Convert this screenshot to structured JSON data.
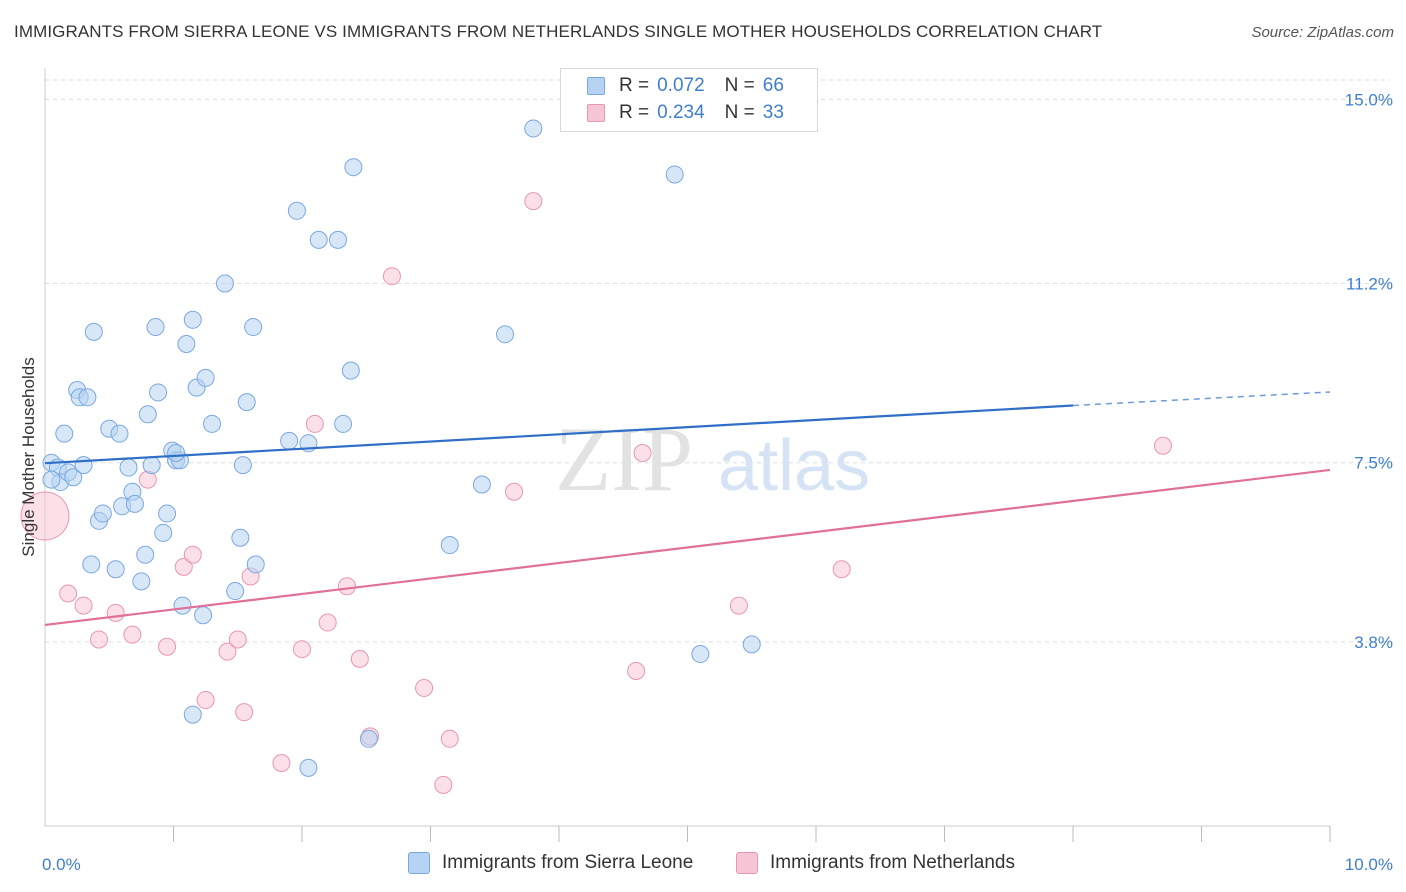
{
  "title": "IMMIGRANTS FROM SIERRA LEONE VS IMMIGRANTS FROM NETHERLANDS SINGLE MOTHER HOUSEHOLDS CORRELATION CHART",
  "source": "Source: ZipAtlas.com",
  "watermark": {
    "zip": "ZIP",
    "atlas": "atlas"
  },
  "legend": {
    "series1": {
      "r_label": "R = ",
      "r_value": "0.072",
      "n_label": "N = ",
      "n_value": "66"
    },
    "series2": {
      "r_label": "R = ",
      "r_value": "0.234",
      "n_label": "N = ",
      "n_value": "33"
    }
  },
  "colors": {
    "blue_fill": "#b7d3f3",
    "blue_stroke": "#7aa8e0",
    "blue_line": "#2f6fc7",
    "pink_fill": "#f7c6d6",
    "pink_stroke": "#e896b2",
    "pink_line": "#e0709a",
    "tick_text": "#3f7fd0",
    "grid": "#dddddd"
  },
  "chart_data": {
    "type": "scatter",
    "title": "IMMIGRANTS FROM SIERRA LEONE VS IMMIGRANTS FROM NETHERLANDS SINGLE MOTHER HOUSEHOLDS CORRELATION CHART",
    "xlabel": "",
    "ylabel": "Single Mother Households",
    "xlim": [
      0,
      10
    ],
    "ylim": [
      0,
      15.4
    ],
    "x_tick_labels": [
      "0.0%",
      "10.0%"
    ],
    "y_ticks": [
      3.8,
      7.5,
      11.2,
      15.0
    ],
    "y_tick_labels": [
      "3.8%",
      "7.5%",
      "11.2%",
      "15.0%"
    ],
    "grid": "horizontal dashed",
    "legend_position": "top-center",
    "series": [
      {
        "name": "Immigrants from Sierra Leone",
        "color": "#b7d3f3",
        "r": 0.072,
        "n": 66,
        "trend": {
          "x": [
            0,
            8.0
          ],
          "y": [
            7.49,
            8.68
          ],
          "dashed_to": [
            10,
            8.96
          ]
        },
        "points": [
          [
            0.05,
            7.5
          ],
          [
            0.1,
            7.4
          ],
          [
            0.12,
            7.1
          ],
          [
            0.15,
            8.1
          ],
          [
            0.18,
            7.3
          ],
          [
            0.22,
            7.2
          ],
          [
            0.25,
            9.0
          ],
          [
            0.27,
            8.85
          ],
          [
            0.3,
            7.45
          ],
          [
            0.33,
            8.85
          ],
          [
            0.36,
            5.4
          ],
          [
            0.38,
            10.2
          ],
          [
            0.42,
            6.3
          ],
          [
            0.45,
            6.45
          ],
          [
            0.5,
            8.2
          ],
          [
            0.55,
            5.3
          ],
          [
            0.58,
            8.1
          ],
          [
            0.6,
            6.6
          ],
          [
            0.65,
            7.4
          ],
          [
            0.68,
            6.9
          ],
          [
            0.7,
            6.65
          ],
          [
            0.75,
            5.05
          ],
          [
            0.78,
            5.6
          ],
          [
            0.8,
            8.5
          ],
          [
            0.83,
            7.45
          ],
          [
            0.86,
            10.3
          ],
          [
            0.88,
            8.95
          ],
          [
            0.92,
            6.05
          ],
          [
            0.95,
            6.45
          ],
          [
            0.99,
            7.75
          ],
          [
            1.02,
            7.55
          ],
          [
            1.05,
            7.55
          ],
          [
            1.07,
            4.55
          ],
          [
            1.1,
            9.95
          ],
          [
            1.15,
            10.45
          ],
          [
            1.18,
            9.05
          ],
          [
            1.23,
            4.35
          ],
          [
            1.25,
            9.25
          ],
          [
            1.3,
            8.3
          ],
          [
            1.4,
            11.2
          ],
          [
            1.48,
            4.85
          ],
          [
            1.52,
            5.95
          ],
          [
            1.54,
            7.45
          ],
          [
            1.57,
            8.75
          ],
          [
            1.62,
            10.3
          ],
          [
            1.64,
            5.4
          ],
          [
            1.9,
            7.95
          ],
          [
            1.96,
            12.7
          ],
          [
            2.05,
            1.2
          ],
          [
            2.05,
            7.9
          ],
          [
            2.13,
            12.1
          ],
          [
            2.28,
            12.1
          ],
          [
            2.32,
            8.3
          ],
          [
            2.38,
            9.4
          ],
          [
            2.4,
            13.6
          ],
          [
            2.52,
            1.8
          ],
          [
            3.15,
            5.8
          ],
          [
            3.4,
            7.05
          ],
          [
            3.58,
            10.15
          ],
          [
            3.8,
            14.4
          ],
          [
            4.9,
            13.45
          ],
          [
            5.1,
            3.55
          ],
          [
            5.5,
            3.75
          ],
          [
            0.05,
            7.15
          ],
          [
            1.15,
            2.3
          ],
          [
            1.02,
            7.7
          ]
        ]
      },
      {
        "name": "Immigrants from Netherlands",
        "color": "#f7c6d6",
        "r": 0.234,
        "n": 33,
        "trend": {
          "x": [
            0,
            10
          ],
          "y": [
            4.15,
            7.35
          ]
        },
        "points": [
          [
            0.0,
            6.4
          ],
          [
            0.18,
            4.8
          ],
          [
            0.3,
            4.55
          ],
          [
            0.42,
            3.85
          ],
          [
            0.55,
            4.4
          ],
          [
            0.68,
            3.95
          ],
          [
            0.8,
            7.15
          ],
          [
            0.95,
            3.7
          ],
          [
            1.08,
            5.35
          ],
          [
            1.15,
            5.6
          ],
          [
            1.25,
            2.6
          ],
          [
            1.42,
            3.6
          ],
          [
            1.5,
            3.85
          ],
          [
            1.55,
            2.35
          ],
          [
            1.6,
            5.15
          ],
          [
            1.84,
            1.3
          ],
          [
            2.0,
            3.65
          ],
          [
            2.1,
            8.3
          ],
          [
            2.2,
            4.2
          ],
          [
            2.35,
            4.95
          ],
          [
            2.45,
            3.45
          ],
          [
            2.53,
            1.85
          ],
          [
            2.7,
            11.35
          ],
          [
            2.95,
            2.85
          ],
          [
            3.1,
            0.85
          ],
          [
            3.15,
            1.8
          ],
          [
            3.65,
            6.9
          ],
          [
            3.8,
            12.9
          ],
          [
            4.6,
            3.2
          ],
          [
            4.65,
            7.7
          ],
          [
            5.4,
            4.55
          ],
          [
            6.2,
            5.3
          ],
          [
            8.7,
            7.85
          ]
        ]
      }
    ]
  },
  "bottom_legend": {
    "item1": "Immigrants from Sierra Leone",
    "item2": "Immigrants from Netherlands"
  }
}
